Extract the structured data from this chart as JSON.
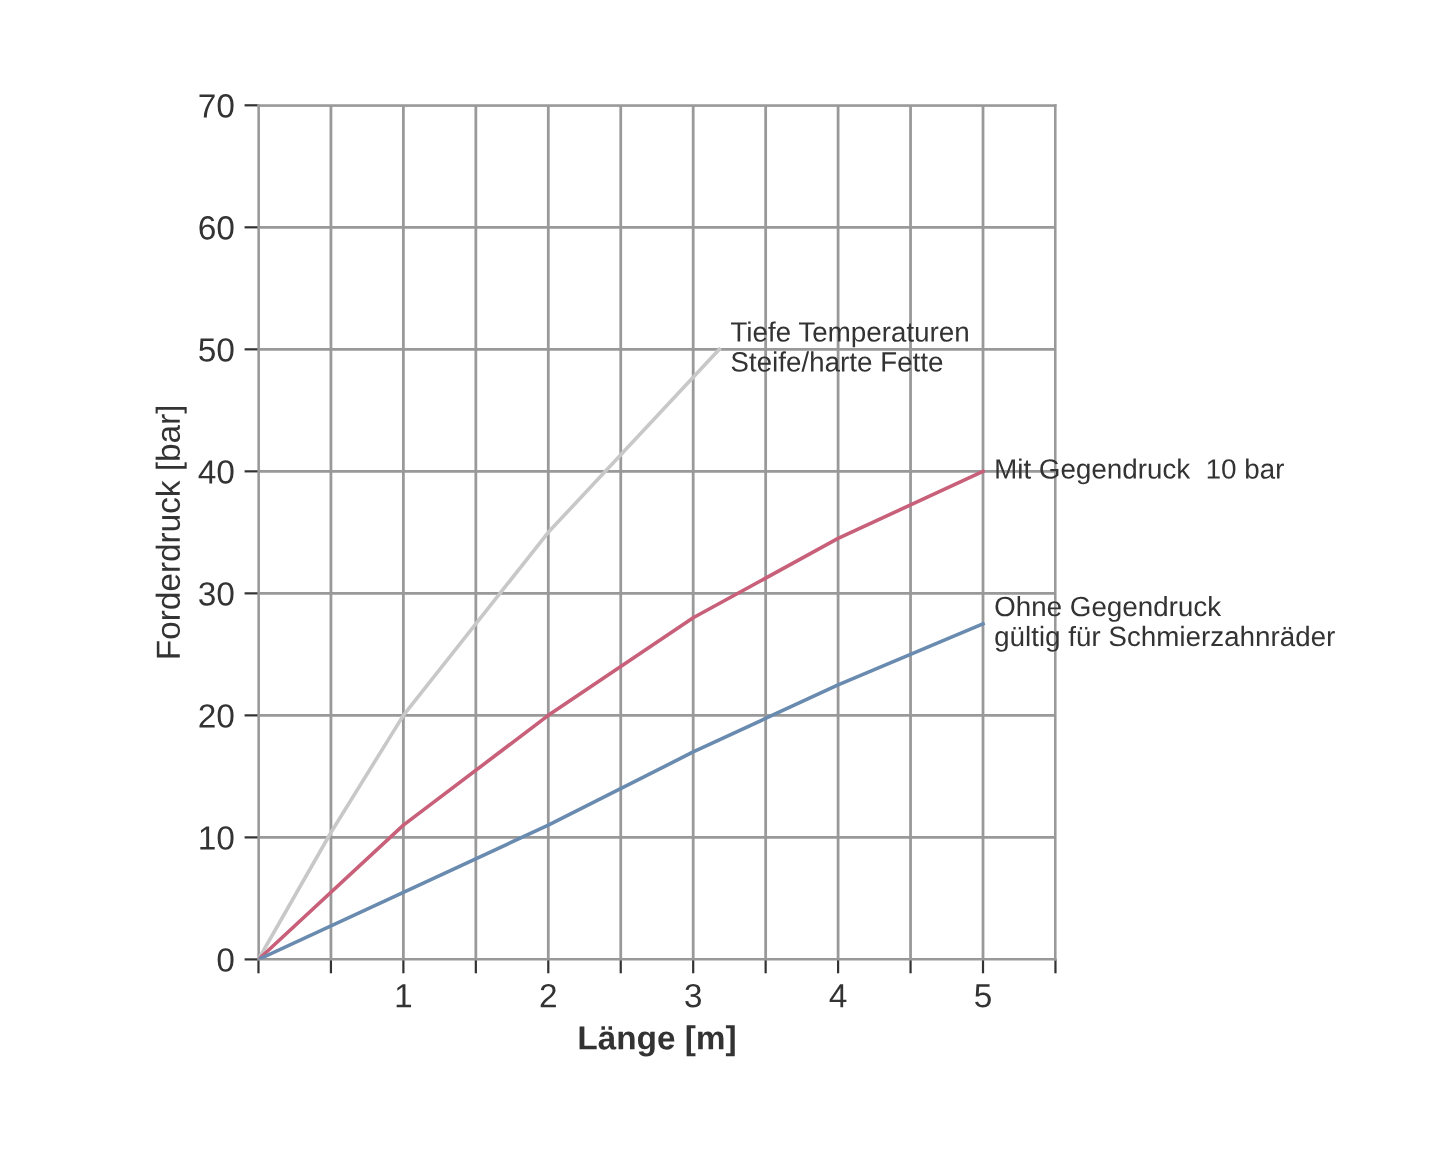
{
  "chart_data": {
    "type": "line",
    "xlabel": "Länge [m]",
    "ylabel": "Forderdruck [bar]",
    "xlim": [
      0,
      5.5
    ],
    "ylim": [
      0,
      70
    ],
    "xticks": [
      {
        "value": 0,
        "label": null
      },
      {
        "value": 0.5,
        "label": null
      },
      1,
      {
        "value": 1.5,
        "label": null
      },
      2,
      {
        "value": 2.5,
        "label": null
      },
      3,
      {
        "value": 3.5,
        "label": null
      },
      4,
      {
        "value": 4.5,
        "label": null
      },
      5,
      {
        "value": 5.5,
        "label": null
      }
    ],
    "yticks": [
      0,
      10,
      20,
      30,
      40,
      50,
      60,
      70
    ],
    "grid": true,
    "legend": false,
    "marker": "none",
    "line_style": "solid",
    "series": [
      {
        "name": "Tiefe Temperaturen\nSteife/harte Fette",
        "color": "#c8c8c8",
        "x": [
          0,
          0.5,
          1,
          2,
          3.18
        ],
        "values": [
          0,
          10.4,
          20,
          35,
          50
        ]
      },
      {
        "name": "Mit Gegendruck  10 bar",
        "color": "#c8607a",
        "x": [
          0,
          1,
          2,
          3,
          4,
          5
        ],
        "values": [
          0,
          11,
          20,
          28,
          34.5,
          40
        ]
      },
      {
        "name": "Ohne Gegendruck\ngültig für Schmierzahnräder",
        "color": "#6a8bb0",
        "x": [
          0,
          1,
          2,
          3,
          4,
          5
        ],
        "values": [
          0,
          5.5,
          11,
          17,
          22.5,
          27.5
        ]
      }
    ]
  }
}
